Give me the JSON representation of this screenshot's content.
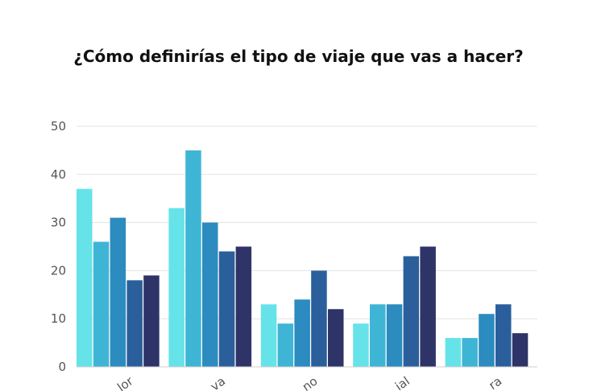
{
  "chart_data": {
    "type": "bar",
    "title": "¿Cómo definirías el tipo de viaje que vas a hacer?",
    "xlabel": "",
    "ylabel": "",
    "ylim": [
      0,
      50
    ],
    "yticks": [
      "0",
      "10",
      "20",
      "30",
      "40",
      "50"
    ],
    "grid": true,
    "legend": "none",
    "categories": [
      "lor",
      "va",
      "no",
      "ial",
      "ra"
    ],
    "series": [
      {
        "color": "#66E3E8",
        "values": [
          37,
          33,
          13,
          9,
          6
        ]
      },
      {
        "color": "#3FB5D6",
        "values": [
          26,
          45,
          9,
          13,
          6
        ]
      },
      {
        "color": "#2C8BBF",
        "values": [
          31,
          30,
          14,
          13,
          11
        ]
      },
      {
        "color": "#2A5F9C",
        "values": [
          18,
          24,
          20,
          23,
          13
        ]
      },
      {
        "color": "#2E3468",
        "values": [
          19,
          25,
          12,
          25,
          7
        ]
      }
    ]
  }
}
